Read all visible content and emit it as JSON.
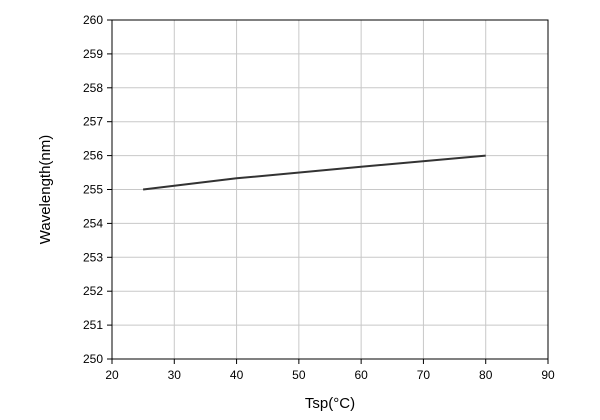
{
  "chart_data": {
    "type": "line",
    "xlabel": "Tsp(°C)",
    "ylabel": "Wavelength(nm)",
    "xlim": [
      20,
      90
    ],
    "ylim": [
      250,
      260
    ],
    "x_ticks": [
      20,
      30,
      40,
      50,
      60,
      70,
      80,
      90
    ],
    "y_ticks": [
      250,
      251,
      252,
      253,
      254,
      255,
      256,
      257,
      258,
      259,
      260
    ],
    "grid": true,
    "series": [
      {
        "x": [
          25,
          40,
          60,
          80
        ],
        "y": [
          255.0,
          255.33,
          255.67,
          256.0
        ],
        "color": "#333333"
      }
    ]
  }
}
